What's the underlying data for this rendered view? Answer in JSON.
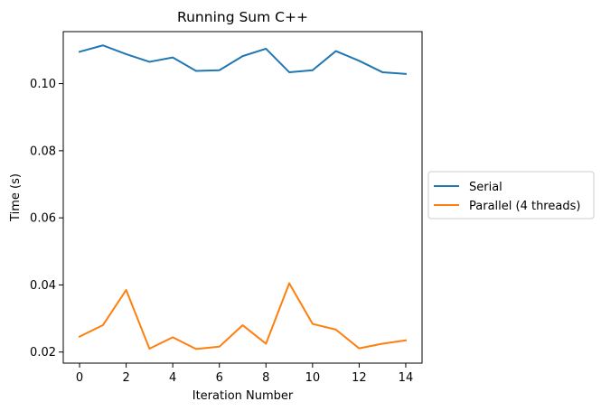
{
  "chart_data": {
    "type": "line",
    "title": "Running Sum C++",
    "xlabel": "Iteration Number",
    "ylabel": "Time (s)",
    "x": [
      0,
      1,
      2,
      3,
      4,
      5,
      6,
      7,
      8,
      9,
      10,
      11,
      12,
      13,
      14
    ],
    "xticks": [
      0,
      2,
      4,
      6,
      8,
      10,
      12,
      14
    ],
    "xtick_labels": [
      "0",
      "2",
      "4",
      "6",
      "8",
      "10",
      "12",
      "14"
    ],
    "yticks": [
      0.02,
      0.04,
      0.06,
      0.08,
      0.1
    ],
    "ytick_labels": [
      "0.02",
      "0.04",
      "0.06",
      "0.08",
      "0.10"
    ],
    "xlim": [
      -0.7,
      14.7
    ],
    "ylim": [
      0.0167,
      0.1155
    ],
    "grid": false,
    "legend_position": "center-right, outside plot",
    "series": [
      {
        "name": "Serial",
        "color": "#1f77b4",
        "values": [
          0.1095,
          0.1114,
          0.1088,
          0.1065,
          0.1078,
          0.1038,
          0.104,
          0.1082,
          0.1104,
          0.1034,
          0.104,
          0.1097,
          0.1068,
          0.1034,
          0.1029
        ]
      },
      {
        "name": "Parallel (4 threads)",
        "color": "#ff7f0e",
        "values": [
          0.0246,
          0.028,
          0.0385,
          0.021,
          0.0244,
          0.0209,
          0.0216,
          0.028,
          0.0225,
          0.0405,
          0.0284,
          0.0267,
          0.0211,
          0.0225,
          0.0235
        ]
      }
    ]
  }
}
